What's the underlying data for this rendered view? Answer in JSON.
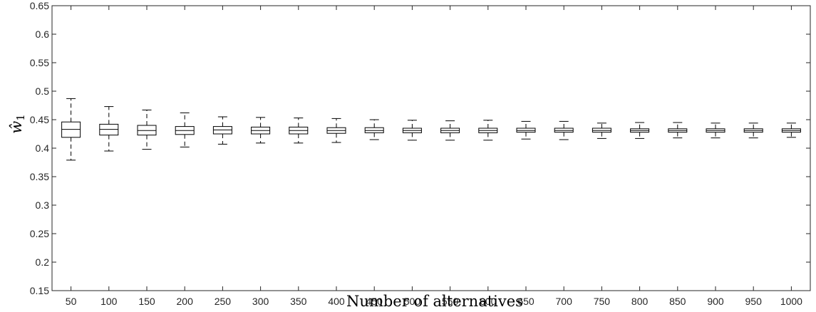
{
  "chart_data": {
    "type": "box",
    "xlabel": "Number of alternatives",
    "ylabel": "ŵ",
    "ylabel_subscript": "1",
    "ylim": [
      0.15,
      0.65
    ],
    "yticks": [
      0.15,
      0.2,
      0.25,
      0.3,
      0.35,
      0.4,
      0.45,
      0.5,
      0.55,
      0.6,
      0.65
    ],
    "ytick_labels": [
      "0.15",
      "0.2",
      "0.25",
      "0.3",
      "0.35",
      "0.4",
      "0.45",
      "0.5",
      "0.55",
      "0.6",
      "0.65"
    ],
    "categories": [
      "50",
      "100",
      "150",
      "200",
      "250",
      "300",
      "350",
      "400",
      "450",
      "500",
      "550",
      "600",
      "650",
      "700",
      "750",
      "800",
      "850",
      "900",
      "950",
      "1000"
    ],
    "boxes": [
      {
        "min": 0.379,
        "q1": 0.419,
        "median": 0.433,
        "q3": 0.446,
        "max": 0.487
      },
      {
        "min": 0.395,
        "q1": 0.423,
        "median": 0.433,
        "q3": 0.442,
        "max": 0.473
      },
      {
        "min": 0.398,
        "q1": 0.423,
        "median": 0.431,
        "q3": 0.44,
        "max": 0.467
      },
      {
        "min": 0.402,
        "q1": 0.424,
        "median": 0.431,
        "q3": 0.438,
        "max": 0.462
      },
      {
        "min": 0.407,
        "q1": 0.425,
        "median": 0.432,
        "q3": 0.438,
        "max": 0.455
      },
      {
        "min": 0.409,
        "q1": 0.425,
        "median": 0.431,
        "q3": 0.437,
        "max": 0.454
      },
      {
        "min": 0.409,
        "q1": 0.425,
        "median": 0.431,
        "q3": 0.437,
        "max": 0.453
      },
      {
        "min": 0.41,
        "q1": 0.426,
        "median": 0.431,
        "q3": 0.436,
        "max": 0.452
      },
      {
        "min": 0.415,
        "q1": 0.427,
        "median": 0.431,
        "q3": 0.436,
        "max": 0.45
      },
      {
        "min": 0.414,
        "q1": 0.427,
        "median": 0.431,
        "q3": 0.435,
        "max": 0.449
      },
      {
        "min": 0.414,
        "q1": 0.427,
        "median": 0.431,
        "q3": 0.435,
        "max": 0.448
      },
      {
        "min": 0.414,
        "q1": 0.427,
        "median": 0.431,
        "q3": 0.435,
        "max": 0.449
      },
      {
        "min": 0.416,
        "q1": 0.428,
        "median": 0.431,
        "q3": 0.435,
        "max": 0.447
      },
      {
        "min": 0.415,
        "q1": 0.428,
        "median": 0.431,
        "q3": 0.435,
        "max": 0.447
      },
      {
        "min": 0.417,
        "q1": 0.428,
        "median": 0.431,
        "q3": 0.435,
        "max": 0.444
      },
      {
        "min": 0.417,
        "q1": 0.428,
        "median": 0.431,
        "q3": 0.434,
        "max": 0.445
      },
      {
        "min": 0.418,
        "q1": 0.428,
        "median": 0.431,
        "q3": 0.434,
        "max": 0.445
      },
      {
        "min": 0.418,
        "q1": 0.428,
        "median": 0.431,
        "q3": 0.434,
        "max": 0.444
      },
      {
        "min": 0.418,
        "q1": 0.428,
        "median": 0.431,
        "q3": 0.434,
        "max": 0.444
      },
      {
        "min": 0.419,
        "q1": 0.428,
        "median": 0.431,
        "q3": 0.434,
        "max": 0.444
      }
    ],
    "grid": false
  }
}
